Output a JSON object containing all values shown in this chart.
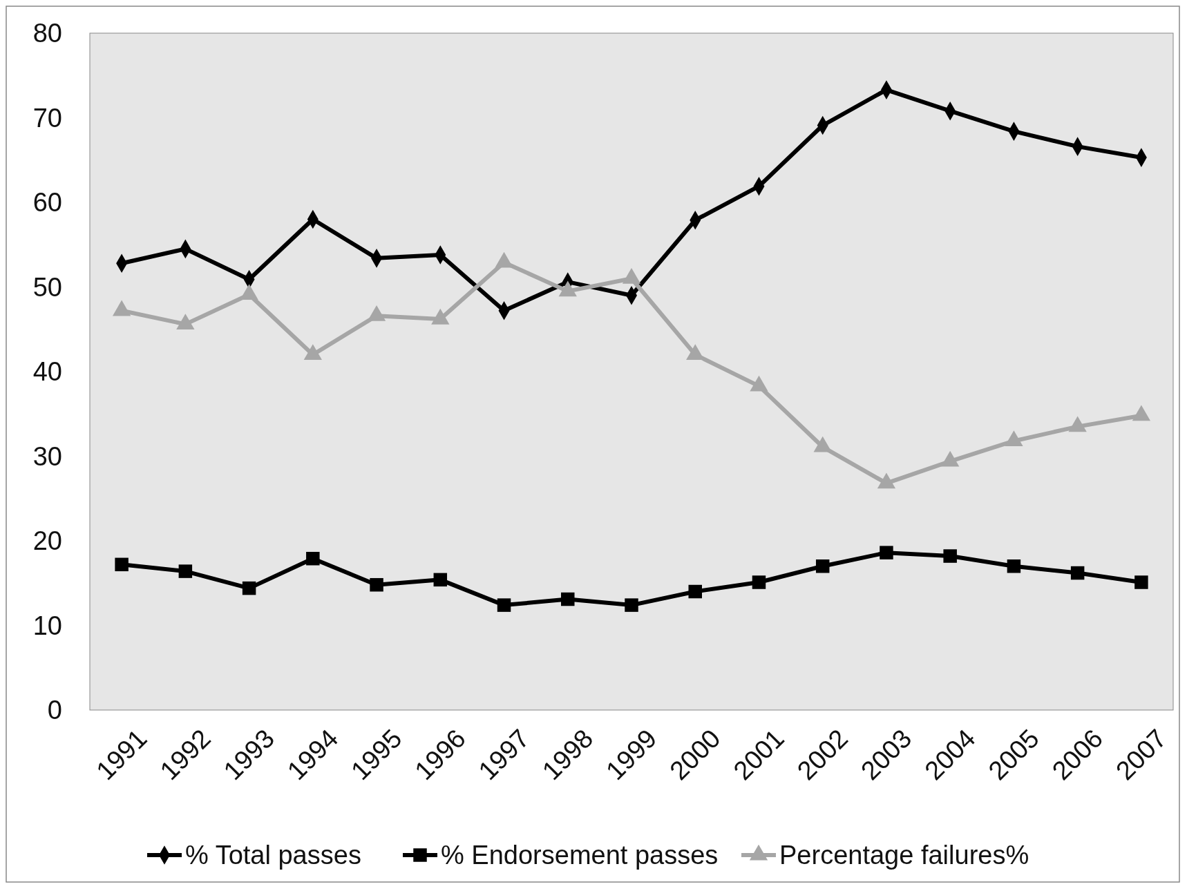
{
  "chart_data": {
    "type": "line",
    "categories": [
      "1991",
      "1992",
      "1993",
      "1994",
      "1995",
      "1996",
      "1997",
      "1998",
      "1999",
      "2000",
      "2001",
      "2002",
      "2003",
      "2004",
      "2005",
      "2006",
      "2007"
    ],
    "series": [
      {
        "name": "% Total passes",
        "color": "#000000",
        "marker": "diamond",
        "values": [
          52.8,
          54.5,
          50.9,
          58.0,
          53.4,
          53.8,
          47.2,
          50.6,
          49.0,
          57.9,
          61.9,
          69.1,
          73.3,
          70.8,
          68.4,
          66.6,
          65.3
        ]
      },
      {
        "name": "% Endorsement passes",
        "color": "#000000",
        "marker": "square",
        "values": [
          17.2,
          16.4,
          14.4,
          17.9,
          14.8,
          15.4,
          12.4,
          13.1,
          12.4,
          14.0,
          15.1,
          17.0,
          18.6,
          18.2,
          17.0,
          16.2,
          15.1
        ]
      },
      {
        "name": "Percentage failures%",
        "color": "#a6a6a6",
        "marker": "triangle",
        "values": [
          47.2,
          45.6,
          49.1,
          42.0,
          46.6,
          46.2,
          52.9,
          49.5,
          51.0,
          42.0,
          38.3,
          31.1,
          26.8,
          29.4,
          31.8,
          33.5,
          34.8
        ]
      }
    ],
    "ylim": [
      0,
      80
    ],
    "yticks": [
      0,
      10,
      20,
      30,
      40,
      50,
      60,
      70,
      80
    ],
    "grid": false,
    "legend": "bottom",
    "line_style": "solid"
  }
}
